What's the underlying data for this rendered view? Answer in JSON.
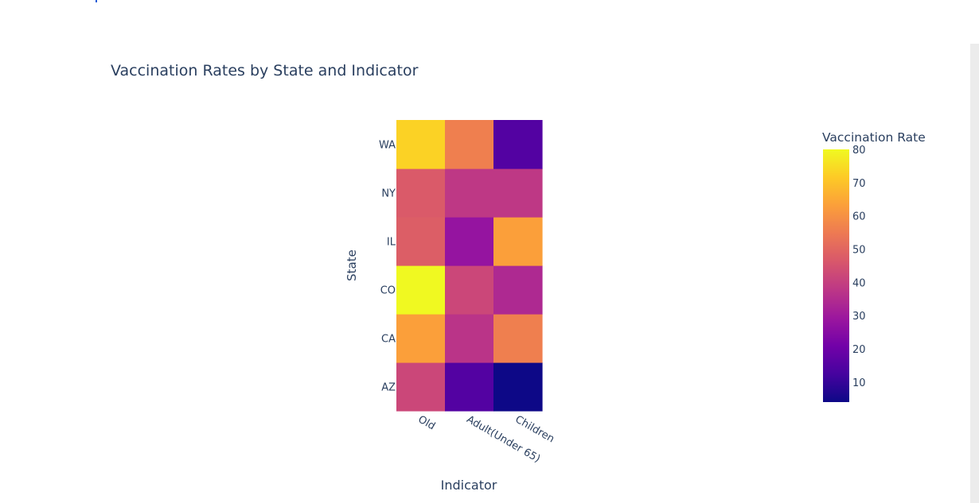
{
  "chart_data": {
    "type": "heatmap",
    "title": "Vaccination Rates by State and Indicator",
    "xlabel": "Indicator",
    "ylabel": "State",
    "x_categories": [
      "Old",
      "Adult(Under 65)",
      "Children"
    ],
    "y_categories": [
      "AZ",
      "CA",
      "CO",
      "IL",
      "NY",
      "WA"
    ],
    "z": [
      [
        42,
        15,
        4
      ],
      [
        63,
        37,
        56
      ],
      [
        80,
        42,
        34
      ],
      [
        48,
        28,
        63
      ],
      [
        47,
        38,
        38
      ],
      [
        73,
        56,
        15
      ]
    ],
    "colorbar": {
      "title": "Vaccination Rate",
      "range": [
        4,
        80
      ],
      "ticks": [
        10,
        20,
        30,
        40,
        50,
        60,
        70,
        80
      ]
    },
    "colorscale": [
      "#0d0887",
      "#46039f",
      "#7201a8",
      "#9c179e",
      "#bd3786",
      "#d8576b",
      "#ed7953",
      "#fb9f3a",
      "#fdca26",
      "#f0f921"
    ]
  }
}
